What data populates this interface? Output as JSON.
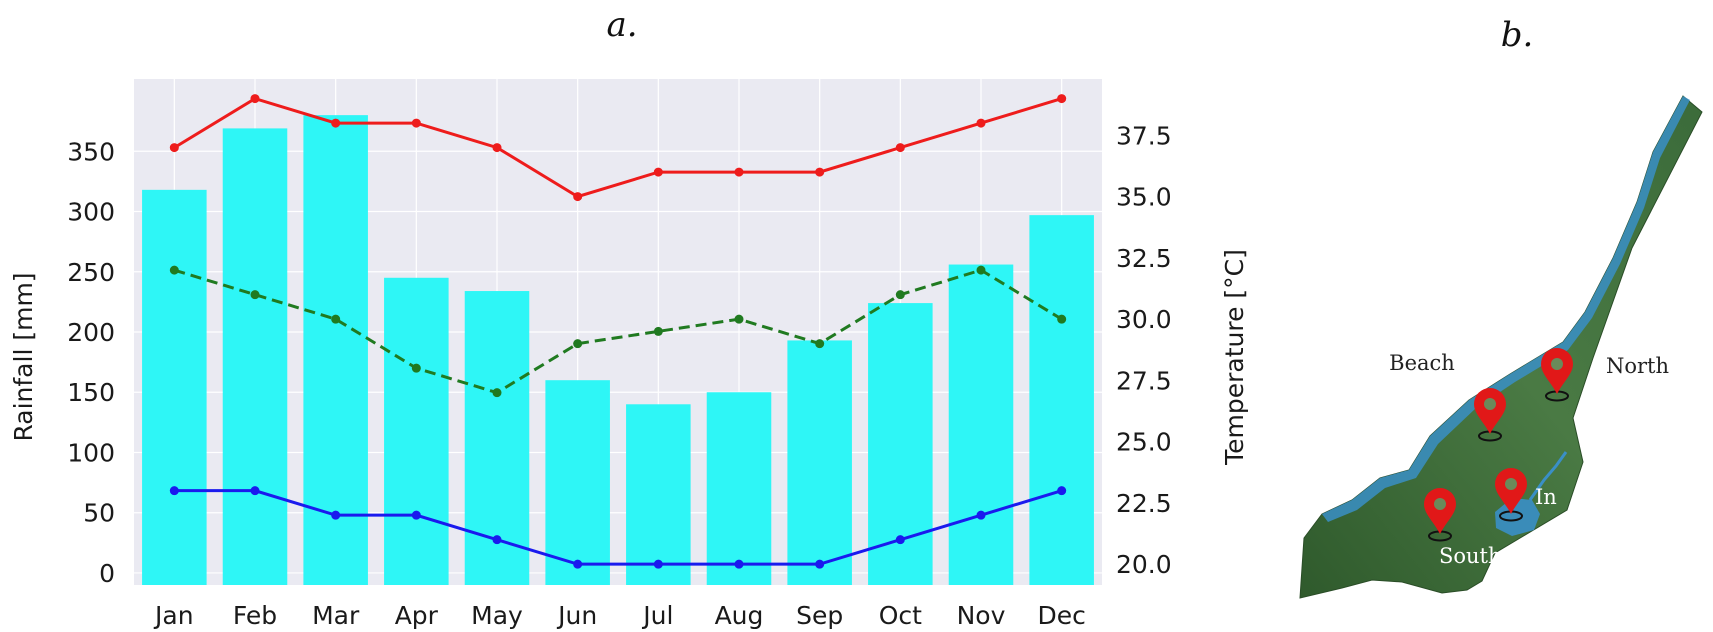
{
  "panels": {
    "a": "a.",
    "b": "b."
  },
  "chart_data": {
    "type": "bar",
    "categories": [
      "Jan",
      "Feb",
      "Mar",
      "Apr",
      "May",
      "Jun",
      "Jul",
      "Aug",
      "Sep",
      "Oct",
      "Nov",
      "Dec"
    ],
    "ylabel": "Rainfall [mm]",
    "y2label": "Temperature [°C]",
    "ylim": [
      -10,
      410
    ],
    "y2lim": [
      19.15,
      39.8
    ],
    "yticks": [
      "0",
      "50",
      "100",
      "150",
      "200",
      "250",
      "300",
      "350"
    ],
    "y2ticks": [
      "20.0",
      "22.5",
      "25.0",
      "27.5",
      "30.0",
      "32.5",
      "35.0",
      "37.5"
    ],
    "grid": true,
    "series": [
      {
        "kind": "bar",
        "axis": "left",
        "color": "#2ef6f6",
        "values": [
          318,
          369,
          380,
          245,
          234,
          160,
          140,
          150,
          193,
          224,
          256,
          297
        ]
      },
      {
        "kind": "line",
        "axis": "right",
        "color": "#ee1c1c",
        "style": "solid",
        "values": [
          37.0,
          39.0,
          38.0,
          38.0,
          37.0,
          35.0,
          36.0,
          36.0,
          36.0,
          37.0,
          38.0,
          39.0
        ]
      },
      {
        "kind": "line",
        "axis": "right",
        "color": "#207a20",
        "style": "dashed",
        "values": [
          32.0,
          31.0,
          30.0,
          28.0,
          27.0,
          29.0,
          29.5,
          30.0,
          29.0,
          31.0,
          32.0,
          30.0
        ]
      },
      {
        "kind": "line",
        "axis": "right",
        "color": "#1a1aee",
        "style": "solid",
        "values": [
          23.0,
          23.0,
          22.0,
          22.0,
          21.0,
          20.0,
          20.0,
          20.0,
          20.0,
          21.0,
          22.0,
          23.0
        ]
      }
    ]
  },
  "map": {
    "labels": {
      "beach": "Beach",
      "north": "North",
      "inner": "In",
      "south": "South"
    },
    "colors": {
      "land": "#3f6e3a",
      "water": "#3a8fc6",
      "pin": "#e11818"
    }
  }
}
